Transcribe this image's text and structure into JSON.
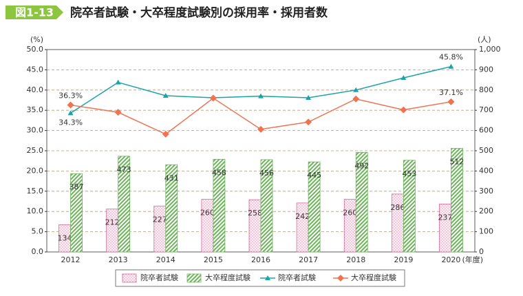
{
  "chart_data": {
    "type": "bar",
    "figure_label": "図1-13",
    "title": "院卒者試験・大卒程度試験別の採用率・採用者数",
    "y_label": "(%)",
    "y2_label": "(人)",
    "x_label": "(年度)",
    "categories": [
      "2012",
      "2013",
      "2014",
      "2015",
      "2016",
      "2017",
      "2018",
      "2019",
      "2020"
    ],
    "ylim": [
      0,
      50
    ],
    "yticks": [
      {
        "value": 0,
        "label": "0.0"
      },
      {
        "value": 5,
        "label": "5.0"
      },
      {
        "value": 10,
        "label": "10.0"
      },
      {
        "value": 15,
        "label": "15.0"
      },
      {
        "value": 20,
        "label": "20.0"
      },
      {
        "value": 25,
        "label": "25.0"
      },
      {
        "value": 30,
        "label": "30.0"
      },
      {
        "value": 35,
        "label": "35.0"
      },
      {
        "value": 40,
        "label": "40.0"
      },
      {
        "value": 45,
        "label": "45.0"
      },
      {
        "value": 50,
        "label": "50.0"
      }
    ],
    "y2lim": [
      0,
      1000
    ],
    "y2ticks": [
      0,
      100,
      200,
      300,
      400,
      500,
      600,
      700,
      800,
      900,
      {
        "value": 1000,
        "label": "1,000"
      }
    ],
    "grid": true,
    "series": [
      {
        "name": "院卒者試験",
        "type": "bar",
        "axis": "y2",
        "color": "#d9679a",
        "values": [
          134,
          212,
          227,
          260,
          258,
          242,
          260,
          286,
          237
        ]
      },
      {
        "name": "大卒程度試験",
        "type": "bar",
        "axis": "y2",
        "color": "#6cb35a",
        "values": [
          387,
          473,
          431,
          458,
          456,
          445,
          492,
          453,
          512
        ]
      },
      {
        "name": "院卒者試験",
        "type": "line",
        "color": "#1aa3a8",
        "values": [
          34.3,
          41.9,
          38.6,
          38.1,
          38.5,
          38.1,
          40.0,
          43.0,
          45.8
        ],
        "value_labels": [
          "34.3%",
          null,
          null,
          null,
          null,
          null,
          null,
          null,
          "45.8%"
        ]
      },
      {
        "name": "大卒程度試験",
        "type": "line",
        "color": "#ef7350",
        "values": [
          36.3,
          34.5,
          29.1,
          38.0,
          30.3,
          32.1,
          37.8,
          35.1,
          37.1
        ],
        "value_labels": [
          "36.3%",
          null,
          null,
          null,
          null,
          null,
          null,
          null,
          "37.1%"
        ]
      }
    ]
  }
}
